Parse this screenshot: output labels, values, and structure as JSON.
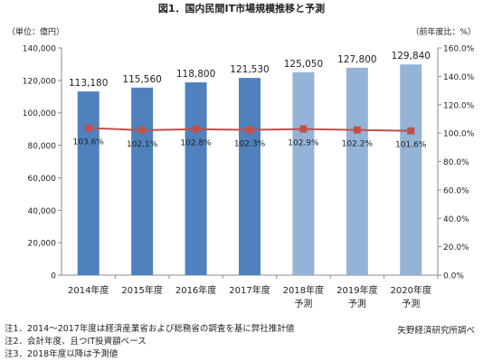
{
  "chart_data": {
    "type": "bar",
    "title": "図1．国内民間IT市場規模推移と予測",
    "y_left_label": "（単位：億円）",
    "y_right_label": "（前年度比：%）",
    "categories": [
      [
        "2014年度",
        ""
      ],
      [
        "2015年度",
        ""
      ],
      [
        "2016年度",
        ""
      ],
      [
        "2017年度",
        ""
      ],
      [
        "2018年度",
        "予測"
      ],
      [
        "2019年度",
        "予測"
      ],
      [
        "2020年度",
        "予測"
      ]
    ],
    "series": [
      {
        "values": [
          113180,
          115560,
          118800,
          121530,
          125050,
          127800,
          129840
        ],
        "value_labels": [
          "113,180",
          "115,560",
          "118,800",
          "121,530",
          "125,050",
          "127,800",
          "129,840"
        ],
        "forecast": [
          false,
          false,
          false,
          false,
          true,
          true,
          true
        ],
        "axis": "left"
      },
      {
        "type": "line",
        "values": [
          103.6,
          102.1,
          102.8,
          102.3,
          102.9,
          102.2,
          101.6
        ],
        "value_labels": [
          "103.6%",
          "102.1%",
          "102.8%",
          "102.3%",
          "102.9%",
          "102.2%",
          "101.6%"
        ],
        "axis": "right"
      }
    ],
    "ylim_left": [
      0,
      140000
    ],
    "ylim_right": [
      0,
      160
    ],
    "yticks_left": [
      "0",
      "20,000",
      "40,000",
      "60,000",
      "80,000",
      "100,000",
      "120,000",
      "140,000"
    ],
    "yticks_right": [
      "0.0%",
      "20.0%",
      "40.0%",
      "60.0%",
      "80.0%",
      "100.0%",
      "120.0%",
      "140.0%",
      "160.0%"
    ],
    "grid": false,
    "legend": "none",
    "colors": {
      "bar_actual": "#4f81bd",
      "bar_forecast": "#95b3d7",
      "line": "#c0504d",
      "marker": "#c0504d",
      "axis": "#8a8a8a"
    }
  },
  "notes": [
    "注1．2014～2017年度は経済産業省および総務省の調査を基に弊社推計値",
    "注2．会計年度、且つIT投資額ベース",
    "注3．2018年度以降は予測値"
  ],
  "source": "矢野経済研究所調べ"
}
